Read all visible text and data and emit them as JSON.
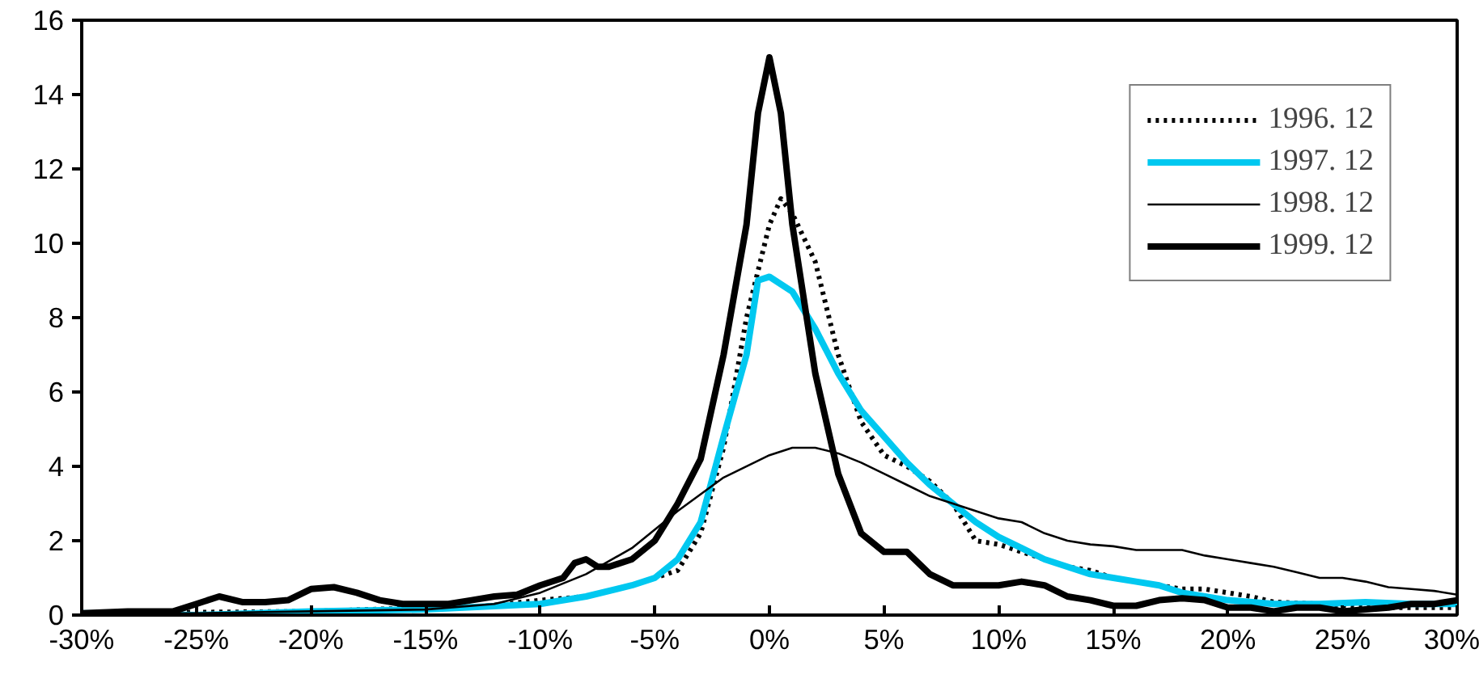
{
  "chart_data": {
    "type": "line",
    "xlim": [
      -30,
      30
    ],
    "ylim": [
      0,
      16
    ],
    "xticks": [
      {
        "value": -30,
        "label": "-30%"
      },
      {
        "value": -25,
        "label": "-25%"
      },
      {
        "value": -20,
        "label": "-20%"
      },
      {
        "value": -15,
        "label": "-15%"
      },
      {
        "value": -10,
        "label": "-10%"
      },
      {
        "value": -5,
        "label": "-5%"
      },
      {
        "value": 0,
        "label": "0%"
      },
      {
        "value": 5,
        "label": "5%"
      },
      {
        "value": 10,
        "label": "10%"
      },
      {
        "value": 15,
        "label": "15%"
      },
      {
        "value": 20,
        "label": "20%"
      },
      {
        "value": 25,
        "label": "25%"
      },
      {
        "value": 30,
        "label": "30%"
      }
    ],
    "yticks": [
      0,
      2,
      4,
      6,
      8,
      10,
      12,
      14,
      16
    ],
    "grid": false,
    "legend": "top right",
    "marker": "none",
    "series": [
      {
        "name": "1996. 12",
        "color": "#000000",
        "line_style": "dotted",
        "x": [
          -30,
          -20,
          -15,
          -13,
          -10,
          -8,
          -6,
          -5,
          -4,
          -3,
          -2,
          -1,
          0,
          0.5,
          1,
          2,
          3,
          4,
          5,
          6,
          7,
          8,
          9,
          10,
          11,
          12,
          13,
          14,
          15,
          16,
          17,
          18,
          19,
          20,
          21,
          22,
          24,
          26,
          28,
          30
        ],
        "values": [
          0.05,
          0.1,
          0.2,
          0.2,
          0.4,
          0.5,
          0.8,
          1.0,
          1.2,
          2.2,
          4.5,
          8.0,
          10.5,
          11.2,
          10.8,
          9.5,
          7.0,
          5.2,
          4.3,
          4.0,
          3.6,
          3.0,
          2.0,
          1.9,
          1.7,
          1.5,
          1.3,
          1.2,
          1.0,
          0.9,
          0.8,
          0.7,
          0.7,
          0.6,
          0.5,
          0.35,
          0.3,
          0.2,
          0.2,
          0.2
        ]
      },
      {
        "name": "1997. 12",
        "color": "#00c8f0",
        "line_style": "solid",
        "x": [
          -30,
          -25,
          -20,
          -15,
          -10,
          -8,
          -6,
          -5,
          -4,
          -3,
          -2,
          -1,
          -0.5,
          0,
          1,
          2,
          3,
          4,
          5,
          6,
          7,
          8,
          9,
          10,
          11,
          12,
          13,
          14,
          15,
          16,
          17,
          18,
          19,
          20,
          22,
          24,
          26,
          28,
          30
        ],
        "values": [
          0.05,
          0.0,
          0.1,
          0.15,
          0.3,
          0.5,
          0.8,
          1.0,
          1.5,
          2.5,
          4.8,
          7.0,
          9.0,
          9.1,
          8.7,
          7.7,
          6.5,
          5.5,
          4.8,
          4.1,
          3.5,
          3.0,
          2.5,
          2.1,
          1.8,
          1.5,
          1.3,
          1.1,
          1.0,
          0.9,
          0.8,
          0.6,
          0.5,
          0.4,
          0.3,
          0.3,
          0.35,
          0.3,
          0.3
        ]
      },
      {
        "name": "1998. 12",
        "color": "#000000",
        "line_style": "solid",
        "x": [
          -30,
          -25,
          -20,
          -15,
          -12,
          -10,
          -8,
          -6,
          -4,
          -2,
          0,
          1,
          2,
          3,
          4,
          5,
          6,
          7,
          8,
          9,
          10,
          11,
          12,
          13,
          14,
          15,
          16,
          17,
          18,
          19,
          20,
          21,
          22,
          23,
          24,
          25,
          26,
          27,
          28,
          29,
          30
        ],
        "values": [
          0.05,
          0.05,
          0.1,
          0.15,
          0.3,
          0.6,
          1.1,
          1.8,
          2.8,
          3.7,
          4.3,
          4.5,
          4.5,
          4.35,
          4.1,
          3.8,
          3.5,
          3.2,
          3.0,
          2.8,
          2.6,
          2.5,
          2.2,
          2.0,
          1.9,
          1.85,
          1.75,
          1.75,
          1.75,
          1.6,
          1.5,
          1.4,
          1.3,
          1.15,
          1.0,
          1.0,
          0.9,
          0.75,
          0.7,
          0.65,
          0.55
        ]
      },
      {
        "name": "1999. 12",
        "color": "#000000",
        "line_style": "solid",
        "x": [
          -30,
          -28,
          -26,
          -25,
          -24,
          -23,
          -22,
          -21,
          -20,
          -19,
          -18,
          -17,
          -16,
          -15,
          -14,
          -13,
          -12,
          -11,
          -10,
          -9,
          -8.5,
          -8,
          -7.5,
          -7,
          -6,
          -5,
          -4,
          -3,
          -2,
          -1,
          -0.5,
          0,
          0.5,
          1,
          2,
          3,
          4,
          5,
          6,
          7,
          8,
          9,
          10,
          11,
          12,
          13,
          14,
          15,
          16,
          17,
          18,
          19,
          20,
          21,
          22,
          23,
          24,
          25,
          26,
          27,
          28,
          29,
          30
        ],
        "values": [
          0.05,
          0.1,
          0.1,
          0.3,
          0.5,
          0.35,
          0.35,
          0.4,
          0.7,
          0.75,
          0.6,
          0.4,
          0.3,
          0.3,
          0.3,
          0.4,
          0.5,
          0.55,
          0.8,
          1.0,
          1.4,
          1.5,
          1.3,
          1.3,
          1.5,
          2.0,
          3.0,
          4.2,
          7.0,
          10.5,
          13.5,
          15.0,
          13.5,
          10.5,
          6.5,
          3.8,
          2.2,
          1.7,
          1.7,
          1.1,
          0.8,
          0.8,
          0.8,
          0.9,
          0.8,
          0.5,
          0.4,
          0.25,
          0.25,
          0.4,
          0.45,
          0.4,
          0.2,
          0.2,
          0.1,
          0.2,
          0.2,
          0.1,
          0.15,
          0.2,
          0.3,
          0.3,
          0.4
        ]
      }
    ]
  }
}
